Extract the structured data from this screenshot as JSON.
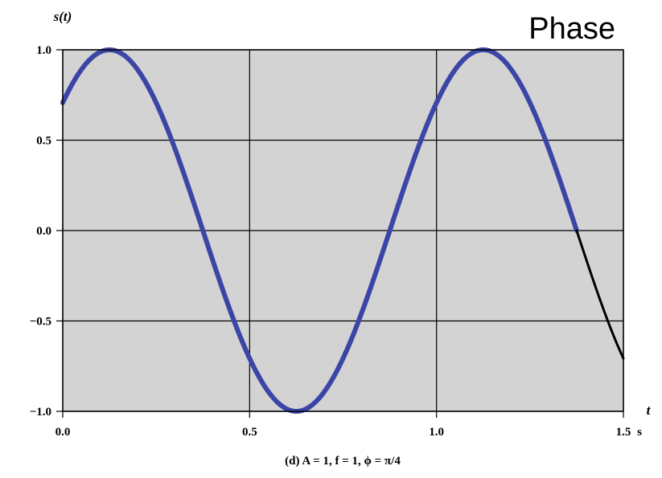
{
  "heading": "Phase",
  "chart_data": {
    "type": "line",
    "ylabel": "s(t)",
    "xlabel": "t",
    "x_unit": "s",
    "caption": "(d) A = 1, f = 1, ϕ = π/4",
    "xlim": [
      0,
      1.5
    ],
    "ylim": [
      -1,
      1
    ],
    "x_ticks": [
      0,
      0.5,
      1.0,
      1.5
    ],
    "x_tick_labels": [
      "0.0",
      "0.5",
      "1.0",
      "1.5"
    ],
    "y_ticks": [
      1.0,
      0.5,
      0.0,
      -0.5,
      -1.0
    ],
    "y_tick_labels": [
      "1.0",
      "0.5",
      "0.0",
      "−0.5",
      "−1.0"
    ],
    "grid": true,
    "function": {
      "form": "s(t) = A sin(2π f t + ϕ)",
      "A": 1,
      "f": 1,
      "phi": 0.7853981634
    },
    "series": [
      {
        "x_start": 0,
        "x_end": 1.375,
        "color": "#3b45a6",
        "points": [
          [
            0,
            0.707
          ],
          [
            0.125,
            1.0
          ],
          [
            0.375,
            0.0
          ],
          [
            0.625,
            -1.0
          ],
          [
            0.875,
            0.0
          ],
          [
            1.125,
            1.0
          ],
          [
            1.375,
            0.0
          ]
        ]
      },
      {
        "x_start": 1.375,
        "x_end": 1.5,
        "color": "#000000",
        "points": [
          [
            1.375,
            0.0
          ],
          [
            1.5,
            -0.707
          ]
        ]
      }
    ],
    "plot_background": "#d3d3d3"
  }
}
